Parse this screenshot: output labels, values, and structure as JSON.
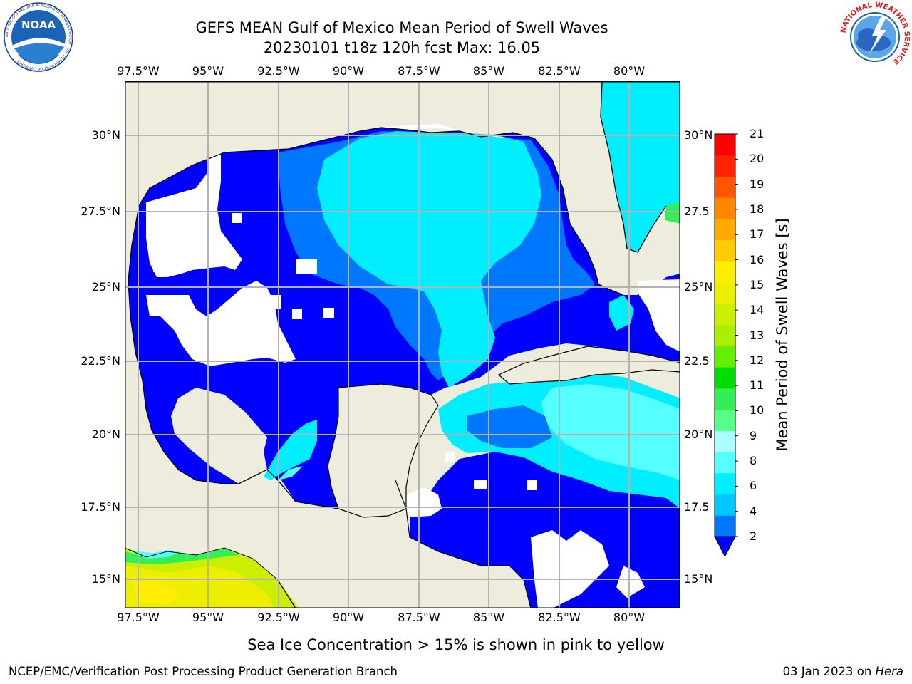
{
  "header": {
    "title_line1": "GEFS MEAN Gulf of Mexico Mean Period of Swell Waves",
    "title_line2": "20230101 t18z 120h fcst   Max: 16.05"
  },
  "logos": {
    "noaa_text": "NOAA",
    "noaa_ring_text": "NATIONAL OCEANIC AND ATMOSPHERIC ADMINISTRATION · U.S. DEPARTMENT OF COMMERCE",
    "nws_ring_text": "NATIONAL WEATHER SERVICE"
  },
  "map": {
    "lon_labels": [
      "97.5°W",
      "95°W",
      "92.5°W",
      "90°W",
      "87.5°W",
      "85°W",
      "82.5°W",
      "80°W"
    ],
    "lat_labels_left": [
      "30°N",
      "27.5°N",
      "25°N",
      "22.5°N",
      "20°N",
      "17.5°N",
      "15°N"
    ],
    "lat_labels_right": [
      "30°N",
      "27.5",
      "25°N",
      "22.5",
      "20°N",
      "17.5",
      "15°N"
    ],
    "colors": {
      "land": "#eeecdd",
      "coast": "#000000",
      "grid": "#b3b3b3",
      "no_data": "#ffffff"
    }
  },
  "colorbar": {
    "label": "Mean Period of Swell Waves [s]",
    "ticks": [
      "2",
      "4",
      "6",
      "8",
      "9",
      "10",
      "11",
      "12",
      "13",
      "14",
      "15",
      "16",
      "17",
      "18",
      "19",
      "20",
      "21"
    ],
    "colors": [
      "#0077ff",
      "#00c8ff",
      "#00eeff",
      "#55ffff",
      "#aaffff",
      "#55ff88",
      "#33ee55",
      "#00dd00",
      "#66ee00",
      "#aaee00",
      "#ccee00",
      "#eeee00",
      "#ffee00",
      "#ffcc00",
      "#ffaa00",
      "#ff8800",
      "#ff5500",
      "#ff2200",
      "#ff0000"
    ],
    "under_color": "#0000ff"
  },
  "footer": {
    "note": "Sea Ice Concentration > 15% is shown in pink to yellow",
    "credit": "NCEP/EMC/Verification Post Processing Product Generation Branch",
    "date": "03 Jan 2023 on ",
    "machine": "Hera"
  }
}
